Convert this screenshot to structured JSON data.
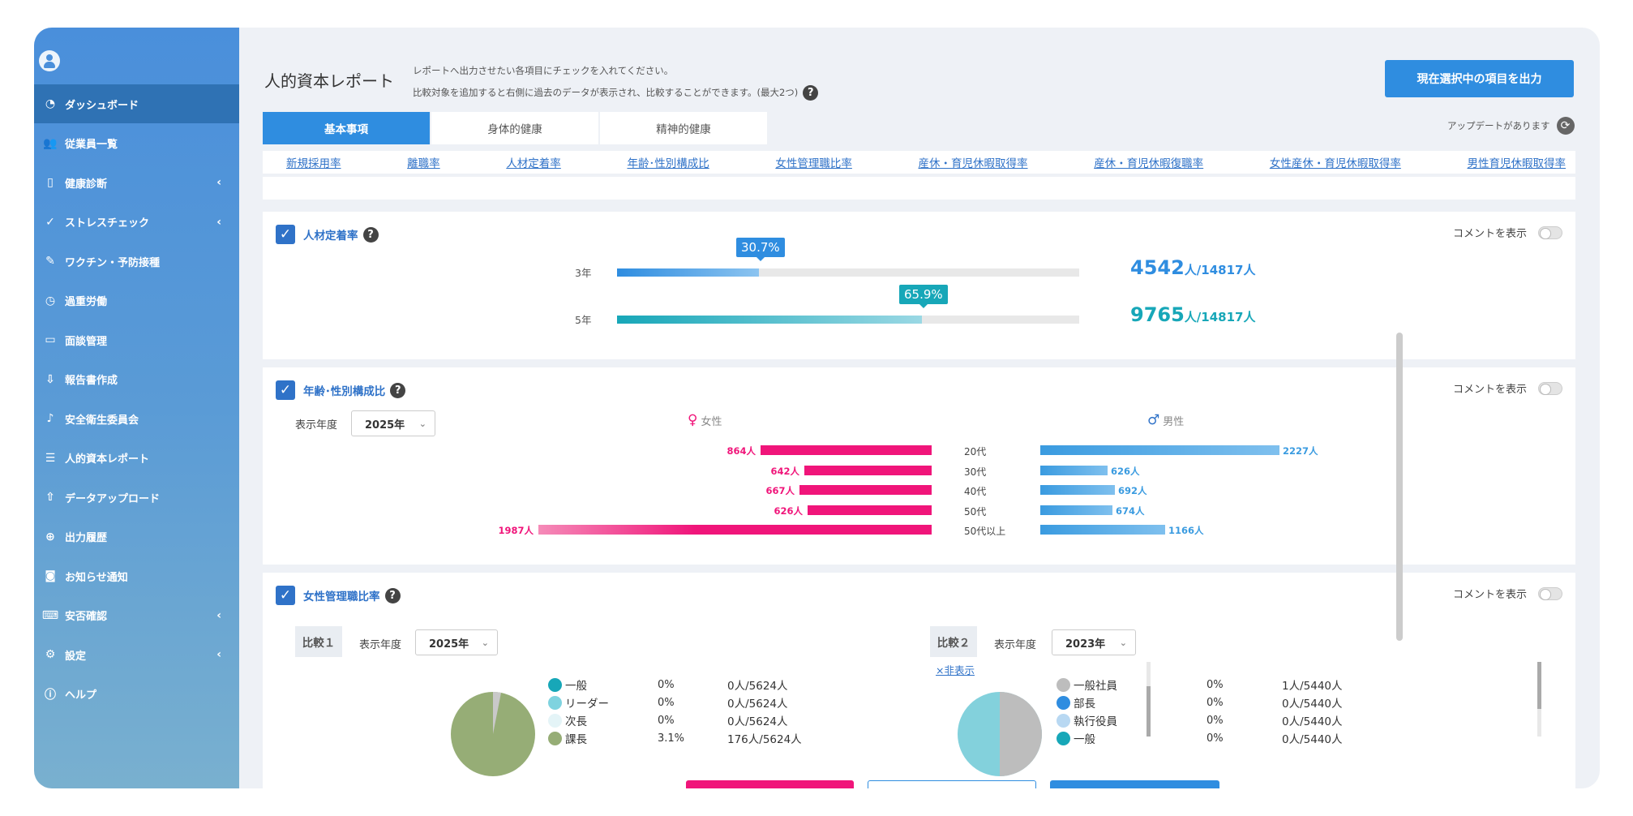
{
  "sidebar": {
    "items": [
      {
        "label": "ダッシュボード",
        "icon": "gauge-icon",
        "active": true
      },
      {
        "label": "従業員一覧",
        "icon": "users-icon"
      },
      {
        "label": "健康診断",
        "icon": "tablet-icon",
        "chevron": true
      },
      {
        "label": "ストレスチェック",
        "icon": "check-circle-icon",
        "chevron": true
      },
      {
        "label": "ワクチン・予防接種",
        "icon": "syringe-icon"
      },
      {
        "label": "過重労働",
        "icon": "clock-icon"
      },
      {
        "label": "面談管理",
        "icon": "laptop-icon"
      },
      {
        "label": "報告書作成",
        "icon": "download-box-icon"
      },
      {
        "label": "安全衛生委員会",
        "icon": "bell-icon"
      },
      {
        "label": "人的資本レポート",
        "icon": "report-icon"
      },
      {
        "label": "データアップロード",
        "icon": "upload-icon"
      },
      {
        "label": "出力履歴",
        "icon": "download-circle-icon"
      },
      {
        "label": "お知らせ通知",
        "icon": "notify-icon"
      },
      {
        "label": "安否確認",
        "icon": "keyboard-icon",
        "chevron": true
      },
      {
        "label": "設定",
        "icon": "gear-icon",
        "chevron": true
      },
      {
        "label": "ヘルプ",
        "icon": "info-icon"
      }
    ]
  },
  "header": {
    "title": "人的資本レポート",
    "desc_line1": "レポートへ出力させたい各項目にチェックを入れてください。",
    "desc_line2": "比較対象を追加すると右側に過去のデータが表示され、比較することができます。(最大2つ)",
    "help": "?",
    "output_button": "現在選択中の項目を出力",
    "update_text": "アップデートがあります"
  },
  "tabs": [
    "基本事項",
    "身体的健康",
    "精神的健康"
  ],
  "anchors": [
    "新規採用率",
    "離職率",
    "人材定着率",
    "年齢･性別構成比",
    "女性管理職比率",
    "産休・育児休暇取得率",
    "産休・育児休暇復職率",
    "女性産休・育児休暇取得率",
    "男性育児休暇取得率"
  ],
  "comment_label": "コメントを表示",
  "retention": {
    "title": "人材定着率",
    "rows": [
      {
        "label": "3年",
        "percent_text": "30.7%",
        "fraction": 0.307,
        "count": "4542",
        "unit": "人/14817人",
        "color": "#2f8de0"
      },
      {
        "label": "5年",
        "percent_text": "65.9%",
        "fraction": 0.659,
        "count": "9765",
        "unit": "人/14817人",
        "color": "#17a7b8"
      }
    ]
  },
  "age_gender": {
    "title": "年齢･性別構成比",
    "year_label": "表示年度",
    "year_value": "2025年",
    "female_label": "女性",
    "male_label": "男性",
    "rows": [
      {
        "age": "20代",
        "female": 864,
        "female_text": "864人",
        "male": 2227,
        "male_text": "2227人"
      },
      {
        "age": "30代",
        "female": 642,
        "female_text": "642人",
        "male": 626,
        "male_text": "626人"
      },
      {
        "age": "40代",
        "female": 667,
        "female_text": "667人",
        "male": 692,
        "male_text": "692人"
      },
      {
        "age": "50代",
        "female": 626,
        "female_text": "626人",
        "male": 674,
        "male_text": "674人"
      },
      {
        "age": "50代以上",
        "female": 1987,
        "female_text": "1987人",
        "male": 1166,
        "male_text": "1166人"
      }
    ],
    "female_color": "#f0157a",
    "male_color": "#3a9be0"
  },
  "women_mgmt": {
    "title": "女性管理職比率",
    "hide_link": "×非表示",
    "compare1": {
      "label": "比較１",
      "year_label": "表示年度",
      "year_value": "2025年",
      "legend": [
        {
          "name": "一般",
          "pct": "0%",
          "count": "0人/5624人",
          "color": "#17a7b8"
        },
        {
          "name": "リーダー",
          "pct": "0%",
          "count": "0人/5624人",
          "color": "#7fd3df"
        },
        {
          "name": "次長",
          "pct": "0%",
          "count": "0人/5624人",
          "color": "#e4f4f7"
        },
        {
          "name": "課長",
          "pct": "3.1%",
          "count": "176人/5624人",
          "color": "#96ad76"
        }
      ]
    },
    "compare2": {
      "label": "比較２",
      "year_label": "表示年度",
      "year_value": "2023年",
      "legend": [
        {
          "name": "一般社員",
          "pct": "0%",
          "count": "1人/5440人",
          "color": "#bdbdbd"
        },
        {
          "name": "部長",
          "pct": "0%",
          "count": "0人/5440人",
          "color": "#2f8de0"
        },
        {
          "name": "執行役員",
          "pct": "0%",
          "count": "0人/5440人",
          "color": "#b8d8f2"
        },
        {
          "name": "一般",
          "pct": "0%",
          "count": "0人/5440人",
          "color": "#17a7b8"
        }
      ]
    }
  }
}
